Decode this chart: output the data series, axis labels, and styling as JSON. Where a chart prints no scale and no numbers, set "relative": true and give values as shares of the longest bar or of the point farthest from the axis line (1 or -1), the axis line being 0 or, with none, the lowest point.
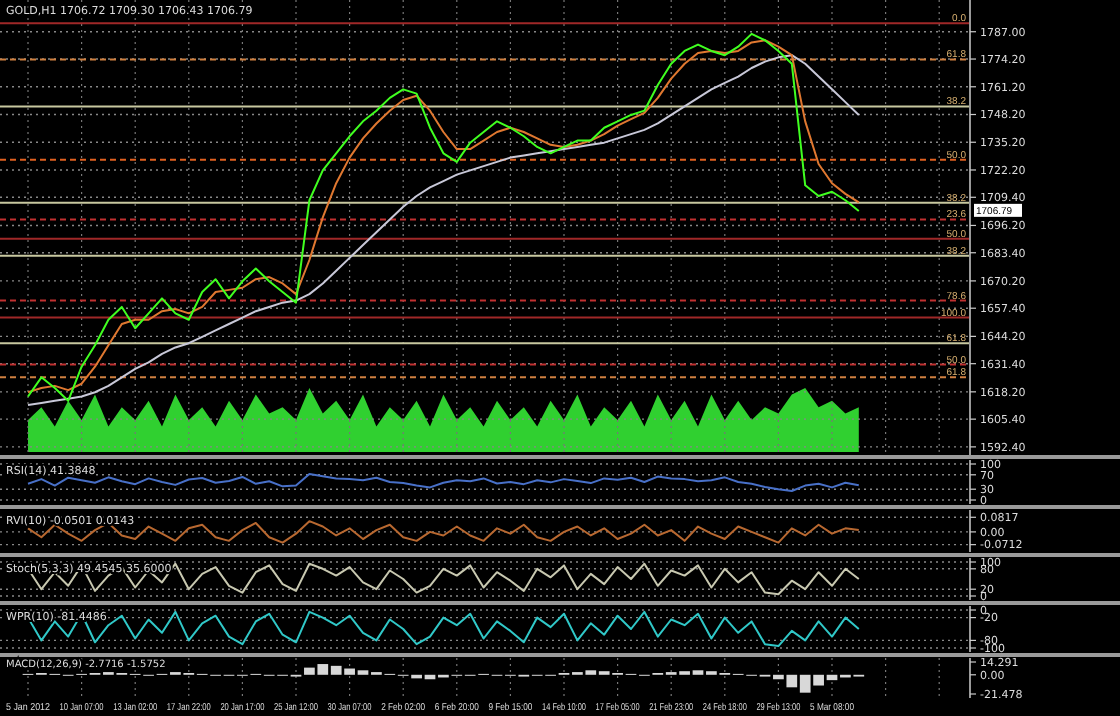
{
  "chart_data": [
    {
      "type": "line",
      "title": "GOLD,H1 1706.72 1709.30 1706.43 1706.79",
      "categories": [
        null,
        null,
        null,
        null,
        null,
        null,
        null,
        null,
        null,
        null,
        null,
        null,
        null,
        null,
        null,
        null,
        null,
        null,
        null,
        null,
        null,
        null,
        null,
        null,
        null,
        null,
        null,
        null,
        null,
        null,
        null,
        null,
        null,
        null,
        null,
        null,
        null,
        null,
        null,
        null,
        null,
        null,
        null,
        null,
        null,
        null,
        null,
        null,
        null,
        null,
        null,
        null,
        null,
        null,
        null,
        null,
        null,
        null,
        null,
        null,
        null,
        null,
        null,
        null,
        null,
        null,
        null,
        null,
        null,
        null,
        null
      ],
      "series": [
        {
          "color": "#c8c8d8",
          "values": [
            1612,
            1613,
            1614,
            1615,
            1616,
            1618,
            1621,
            1625,
            1629,
            1632,
            1636,
            1639,
            1641,
            1644,
            1647,
            1650,
            1653,
            1656,
            1658,
            1660,
            1661,
            1664,
            1669,
            1675,
            1681,
            1687,
            1693,
            1699,
            1705,
            1710,
            1714,
            1717,
            1720,
            1722,
            1724,
            1726,
            1728,
            1729,
            1730,
            1731,
            1732,
            1733,
            1734,
            1735,
            1737,
            1739,
            1741,
            1744,
            1748,
            1752,
            1756,
            1760,
            1763,
            1766,
            1770,
            1773,
            1775,
            1776,
            1772,
            1766,
            1760,
            1754,
            1748,
            null,
            null,
            null,
            null,
            null,
            null,
            null,
            null
          ]
        },
        {
          "color": "#e07830",
          "values": [
            1618,
            1620,
            1621,
            1619,
            1622,
            1630,
            1640,
            1650,
            1652,
            1652,
            1656,
            1657,
            1655,
            1658,
            1665,
            1666,
            1667,
            1671,
            1672,
            1669,
            1664,
            1680,
            1700,
            1716,
            1728,
            1737,
            1744,
            1750,
            1755,
            1757,
            1750,
            1740,
            1732,
            1732,
            1736,
            1740,
            1742,
            1740,
            1737,
            1734,
            1733,
            1734,
            1736,
            1739,
            1743,
            1746,
            1749,
            1756,
            1765,
            1772,
            1777,
            1778,
            1777,
            1778,
            1782,
            1783,
            1780,
            1776,
            1745,
            1725,
            1716,
            1711,
            1707,
            null,
            null,
            null,
            null,
            null,
            null,
            null,
            null
          ]
        },
        {
          "color": "#40ff20",
          "values": [
            1616,
            1625,
            1620,
            1614,
            1630,
            1640,
            1652,
            1658,
            1648,
            1655,
            1662,
            1655,
            1652,
            1665,
            1671,
            1662,
            1670,
            1676,
            1670,
            1665,
            1660,
            1708,
            1722,
            1730,
            1738,
            1745,
            1750,
            1756,
            1760,
            1758,
            1742,
            1730,
            1726,
            1735,
            1740,
            1745,
            1742,
            1738,
            1733,
            1730,
            1733,
            1736,
            1736,
            1742,
            1745,
            1748,
            1750,
            1762,
            1772,
            1778,
            1781,
            1778,
            1776,
            1780,
            1786,
            1783,
            1778,
            1772,
            1715,
            1710,
            1712,
            1708,
            1703,
            null,
            null,
            null,
            null,
            null,
            null,
            null,
            null
          ]
        }
      ],
      "ylim": [
        1590,
        1800
      ],
      "yticks": [
        {
          "value": 1592.4,
          "label": "1592.40"
        },
        {
          "value": 1605.4,
          "label": "1605.40"
        },
        {
          "value": 1618.2,
          "label": "1618.20"
        },
        {
          "value": 1631.4,
          "label": "1631.40"
        },
        {
          "value": 1644.2,
          "label": "1644.20"
        },
        {
          "value": 1657.4,
          "label": "1657.40"
        },
        {
          "value": 1670.2,
          "label": "1670.20"
        },
        {
          "value": 1683.4,
          "label": "1683.40"
        },
        {
          "value": 1696.2,
          "label": "1696.20"
        },
        {
          "value": 1709.4,
          "label": "1709.40"
        },
        {
          "value": 1722.2,
          "label": "1722.20"
        },
        {
          "value": 1735.2,
          "label": "1735.20"
        },
        {
          "value": 1748.2,
          "label": "1748.20"
        },
        {
          "value": 1761.2,
          "label": "1761.20"
        },
        {
          "value": 1774.2,
          "label": "1774.20"
        },
        {
          "value": 1787,
          "label": "1787.00"
        }
      ],
      "ref_lines": [
        {
          "axis": "y",
          "value": 1791,
          "color": "#a02828",
          "line_style": "solid"
        },
        {
          "axis": "y",
          "value": 1774,
          "color": "#d08040",
          "line_style": "dashed"
        },
        {
          "axis": "y",
          "value": 1752,
          "color": "#c8c8a0",
          "line_style": "solid"
        },
        {
          "axis": "y",
          "value": 1727,
          "color": "#e06020",
          "line_style": "dashed"
        },
        {
          "axis": "y",
          "value": 1706.79,
          "label": "1706.79",
          "color": "#c8c8a0",
          "line_style": "solid"
        },
        {
          "axis": "y",
          "value": 1699,
          "color": "#c03030",
          "line_style": "dashed"
        },
        {
          "axis": "y",
          "value": 1690,
          "color": "#a02828",
          "line_style": "solid"
        },
        {
          "axis": "y",
          "value": 1682,
          "color": "#c8c8a0",
          "line_style": "solid"
        },
        {
          "axis": "y",
          "value": 1661,
          "color": "#c03030",
          "line_style": "dashed"
        },
        {
          "axis": "y",
          "value": 1653,
          "color": "#a02828",
          "line_style": "solid"
        },
        {
          "axis": "y",
          "value": 1641,
          "color": "#c8c8a0",
          "line_style": "solid"
        },
        {
          "axis": "y",
          "value": 1631,
          "color": "#c03030",
          "line_style": "dashed"
        },
        {
          "axis": "y",
          "value": 1625,
          "color": "#d08040",
          "line_style": "dashed"
        }
      ],
      "annotations": [
        {
          "text": "0.0",
          "y": 1791
        },
        {
          "text": "61.8",
          "y": 1774
        },
        {
          "text": "38.2",
          "y": 1752
        },
        {
          "text": "50.0",
          "y": 1727
        },
        {
          "text": "38.2",
          "y": 1706.79
        },
        {
          "text": "23.6",
          "y": 1699
        },
        {
          "text": "50.0",
          "y": 1690
        },
        {
          "text": "38.2",
          "y": 1682
        },
        {
          "text": "78.6",
          "y": 1661
        },
        {
          "text": "100.0",
          "y": 1653
        },
        {
          "text": "61.8",
          "y": 1641
        },
        {
          "text": "50.0",
          "y": 1631
        },
        {
          "text": "61.8",
          "y": 1625
        }
      ],
      "grid": true,
      "tick_labels": "y"
    },
    {
      "type": "area",
      "relative": true,
      "categories": [
        null,
        null,
        null,
        null,
        null,
        null,
        null,
        null,
        null,
        null,
        null,
        null,
        null,
        null,
        null,
        null,
        null,
        null,
        null,
        null,
        null,
        null,
        null,
        null,
        null,
        null,
        null,
        null,
        null,
        null,
        null,
        null,
        null,
        null,
        null,
        null,
        null,
        null,
        null,
        null,
        null,
        null,
        null,
        null,
        null,
        null,
        null,
        null,
        null,
        null,
        null,
        null,
        null,
        null,
        null,
        null,
        null,
        null,
        null,
        null,
        null,
        null,
        null,
        null,
        null,
        null,
        null,
        null,
        null,
        null,
        null
      ],
      "series": [
        {
          "color": "#30d030",
          "values": [
            0.5,
            0.7,
            0.4,
            0.8,
            0.5,
            0.9,
            0.4,
            0.7,
            0.5,
            0.8,
            0.4,
            0.9,
            0.5,
            0.7,
            0.4,
            0.8,
            0.5,
            0.9,
            0.6,
            0.7,
            0.5,
            1,
            0.6,
            0.8,
            0.5,
            0.9,
            0.4,
            0.7,
            0.5,
            0.8,
            0.4,
            0.9,
            0.5,
            0.7,
            0.4,
            0.8,
            0.5,
            0.7,
            0.4,
            0.8,
            0.5,
            0.9,
            0.4,
            0.7,
            0.5,
            0.8,
            0.4,
            0.9,
            0.5,
            0.8,
            0.4,
            0.9,
            0.5,
            0.8,
            0.5,
            0.7,
            0.6,
            0.9,
            1,
            0.7,
            0.8,
            0.6,
            0.7,
            null,
            null,
            null,
            null,
            null,
            null,
            null,
            null
          ]
        }
      ],
      "tick_labels": false
    },
    {
      "type": "line",
      "title": "RSI(14) 41.3848",
      "categories": [
        null,
        null,
        null,
        null,
        null,
        null,
        null,
        null,
        null,
        null,
        null,
        null,
        null,
        null,
        null,
        null,
        null,
        null,
        null,
        null,
        null,
        null,
        null,
        null,
        null,
        null,
        null,
        null,
        null,
        null,
        null,
        null,
        null,
        null,
        null,
        null,
        null,
        null,
        null,
        null,
        null,
        null,
        null,
        null,
        null,
        null,
        null,
        null,
        null,
        null,
        null,
        null,
        null,
        null,
        null,
        null,
        null,
        null,
        null,
        null,
        null,
        null,
        null,
        null,
        null,
        null,
        null,
        null,
        null,
        null,
        null
      ],
      "series": [
        {
          "color": "#4870c8",
          "values": [
            45,
            58,
            40,
            62,
            55,
            48,
            63,
            52,
            44,
            60,
            50,
            42,
            57,
            61,
            48,
            53,
            64,
            45,
            52,
            38,
            40,
            72,
            66,
            60,
            58,
            55,
            62,
            50,
            47,
            40,
            35,
            48,
            55,
            52,
            60,
            46,
            50,
            44,
            55,
            49,
            58,
            53,
            47,
            60,
            56,
            62,
            50,
            65,
            60,
            58,
            52,
            55,
            63,
            50,
            45,
            36,
            30,
            25,
            40,
            45,
            35,
            48,
            41,
            null,
            null,
            null,
            null,
            null,
            null,
            null,
            null
          ]
        }
      ],
      "ylim": [
        0,
        100
      ],
      "yticks": [
        0,
        30,
        70,
        100
      ],
      "grid": "y",
      "tick_labels": "y"
    },
    {
      "type": "line",
      "title": "RVI(10) -0.0501 0.0143",
      "categories": [
        null,
        null,
        null,
        null,
        null,
        null,
        null,
        null,
        null,
        null,
        null,
        null,
        null,
        null,
        null,
        null,
        null,
        null,
        null,
        null,
        null,
        null,
        null,
        null,
        null,
        null,
        null,
        null,
        null,
        null,
        null,
        null,
        null,
        null,
        null,
        null,
        null,
        null,
        null,
        null,
        null,
        null,
        null,
        null,
        null,
        null,
        null,
        null,
        null,
        null,
        null,
        null,
        null,
        null,
        null,
        null,
        null,
        null,
        null,
        null,
        null,
        null,
        null,
        null,
        null,
        null,
        null,
        null,
        null,
        null,
        null
      ],
      "series": [
        {
          "color": "#b86830",
          "values": [
            0.02,
            -0.03,
            0.04,
            -0.01,
            -0.05,
            0.01,
            0.05,
            -0.02,
            -0.04,
            0.03,
            -0.01,
            -0.05,
            0.02,
            0.04,
            -0.03,
            -0.05,
            0.01,
            0.05,
            -0.03,
            -0.06,
            -0.01,
            0.06,
            0.03,
            -0.02,
            0.02,
            -0.04,
            0.01,
            0.04,
            -0.03,
            -0.05,
            0,
            -0.02,
            0.03,
            -0.02,
            -0.05,
            0.02,
            -0.01,
            0.04,
            -0.03,
            -0.05,
            0,
            0.03,
            -0.02,
            0.02,
            -0.04,
            -0.01,
            0.04,
            -0.02,
            0.01,
            -0.05,
            0.03,
            -0.01,
            -0.04,
            0.03,
            0,
            -0.03,
            -0.06,
            0.02,
            -0.02,
            0.04,
            -0.01,
            0.02,
            0.01,
            null,
            null,
            null,
            null,
            null,
            null,
            null,
            null
          ]
        }
      ],
      "ylim": [
        -0.09,
        0.1
      ],
      "yticks": [
        {
          "value": -0.0712,
          "label": "-0.0712"
        },
        {
          "value": 0,
          "label": "0.00"
        },
        {
          "value": 0.0817,
          "label": "0.0817"
        }
      ],
      "grid": "y",
      "tick_labels": "y"
    },
    {
      "type": "line",
      "title": "Stoch(5,3,3) 49.4545 35.6000",
      "categories": [
        null,
        null,
        null,
        null,
        null,
        null,
        null,
        null,
        null,
        null,
        null,
        null,
        null,
        null,
        null,
        null,
        null,
        null,
        null,
        null,
        null,
        null,
        null,
        null,
        null,
        null,
        null,
        null,
        null,
        null,
        null,
        null,
        null,
        null,
        null,
        null,
        null,
        null,
        null,
        null,
        null,
        null,
        null,
        null,
        null,
        null,
        null,
        null,
        null,
        null,
        null,
        null,
        null,
        null,
        null,
        null,
        null,
        null,
        null,
        null,
        null,
        null,
        null,
        null,
        null,
        null,
        null,
        null,
        null,
        null,
        null
      ],
      "series": [
        {
          "color": "#c8c8b0",
          "values": [
            80,
            20,
            70,
            30,
            90,
            15,
            60,
            85,
            25,
            75,
            40,
            95,
            20,
            65,
            85,
            30,
            10,
            70,
            90,
            35,
            15,
            95,
            80,
            60,
            85,
            40,
            20,
            75,
            50,
            10,
            30,
            80,
            60,
            90,
            25,
            70,
            45,
            15,
            80,
            55,
            90,
            20,
            65,
            35,
            85,
            50,
            95,
            30,
            75,
            60,
            90,
            25,
            80,
            40,
            70,
            10,
            5,
            45,
            20,
            70,
            30,
            80,
            50,
            null,
            null,
            null,
            null,
            null,
            null,
            null,
            null
          ]
        }
      ],
      "ylim": [
        0,
        100
      ],
      "yticks": [
        0,
        20,
        80,
        100
      ],
      "grid": "y",
      "tick_labels": "y"
    },
    {
      "type": "line",
      "title": "WPR(10) -81.4486",
      "categories": [
        null,
        null,
        null,
        null,
        null,
        null,
        null,
        null,
        null,
        null,
        null,
        null,
        null,
        null,
        null,
        null,
        null,
        null,
        null,
        null,
        null,
        null,
        null,
        null,
        null,
        null,
        null,
        null,
        null,
        null,
        null,
        null,
        null,
        null,
        null,
        null,
        null,
        null,
        null,
        null,
        null,
        null,
        null,
        null,
        null,
        null,
        null,
        null,
        null,
        null,
        null,
        null,
        null,
        null,
        null,
        null,
        null,
        null,
        null,
        null,
        null,
        null,
        null,
        null,
        null,
        null,
        null,
        null,
        null,
        null,
        null
      ],
      "series": [
        {
          "color": "#30c8c8",
          "values": [
            -20,
            -80,
            -30,
            -70,
            -10,
            -85,
            -40,
            -15,
            -75,
            -25,
            -60,
            -5,
            -80,
            -35,
            -15,
            -70,
            -90,
            -30,
            -10,
            -65,
            -85,
            -5,
            -20,
            -40,
            -15,
            -60,
            -80,
            -25,
            -50,
            -90,
            -70,
            -20,
            -40,
            -10,
            -75,
            -30,
            -55,
            -85,
            -20,
            -45,
            -10,
            -80,
            -35,
            -65,
            -15,
            -50,
            -5,
            -70,
            -25,
            -40,
            -10,
            -75,
            -20,
            -60,
            -30,
            -90,
            -95,
            -55,
            -80,
            -30,
            -70,
            -20,
            -50,
            null,
            null,
            null,
            null,
            null,
            null,
            null,
            null
          ]
        }
      ],
      "ylim": [
        -100,
        0
      ],
      "yticks": [
        -100,
        -80,
        -20,
        0
      ],
      "grid": "y",
      "tick_labels": "y"
    },
    {
      "type": "bar",
      "title": "MACD(12,26,9) -2.7716 -1.5752",
      "categories": [
        "5 Jan 2012",
        null,
        null,
        null,
        "10 Jan 07:00",
        null,
        null,
        null,
        "13 Jan 02:00",
        null,
        null,
        null,
        "17 Jan 22:00",
        null,
        null,
        null,
        "20 Jan 17:00",
        null,
        null,
        null,
        "25 Jan 12:00",
        null,
        null,
        null,
        "30 Jan 07:00",
        null,
        null,
        null,
        "2 Feb 02:00",
        null,
        null,
        null,
        "6 Feb 20:00",
        null,
        null,
        null,
        "9 Feb 15:00",
        null,
        null,
        null,
        "14 Feb 10:00",
        null,
        null,
        null,
        "17 Feb 05:00",
        null,
        null,
        null,
        "21 Feb 23:00",
        null,
        null,
        null,
        "24 Feb 18:00",
        null,
        null,
        null,
        "29 Feb 13:00",
        null,
        null,
        null,
        "5 Mar 08:00",
        null,
        null,
        null,
        null,
        null,
        null,
        null,
        null,
        null,
        null
      ],
      "series": [
        {
          "color": "#d8d8d8",
          "values": [
            1,
            2,
            1,
            0,
            1,
            2,
            3,
            2,
            1,
            0,
            1,
            3,
            2,
            1,
            0,
            -1,
            0,
            1,
            0,
            -1,
            -2,
            8,
            12,
            10,
            7,
            5,
            3,
            1,
            -1,
            -4,
            -5,
            -3,
            -1,
            0,
            1,
            0,
            -1,
            -2,
            -1,
            0,
            2,
            3,
            5,
            4,
            2,
            1,
            0,
            2,
            3,
            4,
            5,
            4,
            2,
            1,
            0,
            -2,
            -5,
            -14,
            -20,
            -12,
            -6,
            -3,
            -2,
            null,
            null,
            null,
            null,
            null,
            null,
            null,
            null
          ]
        }
      ],
      "ylim": [
        -21.478,
        14.291
      ],
      "yticks": [
        {
          "value": -21.478,
          "label": "-21.478"
        },
        {
          "value": 0,
          "label": "0.00"
        },
        {
          "value": 14.291,
          "label": "14.291"
        }
      ],
      "grid": "x"
    }
  ]
}
